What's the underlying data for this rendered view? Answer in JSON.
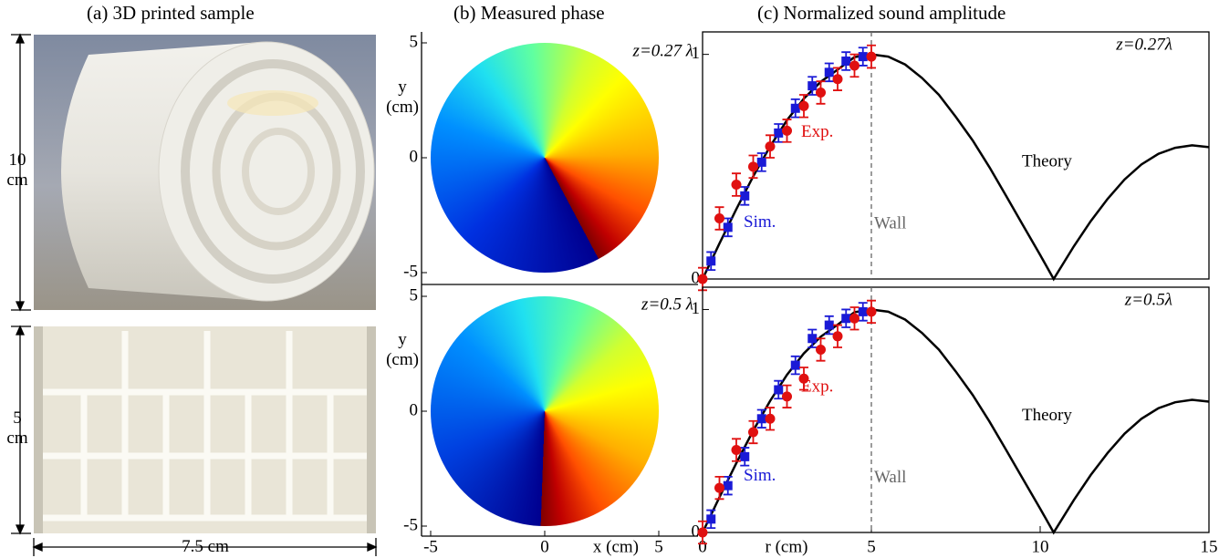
{
  "panel_a": {
    "title": "(a) 3D printed sample",
    "height_top": "10 cm",
    "height_bottom": "5 cm",
    "width": "7.5 cm"
  },
  "panel_b": {
    "title": "(b) Measured phase",
    "x_label": "x (cm)",
    "xticks": [
      -5,
      0,
      5
    ],
    "xlim": [
      -5,
      5
    ],
    "plots": [
      {
        "annotation": "z=0.27 λ",
        "y_label": "y (cm)",
        "yticks": [
          5,
          0,
          -5
        ],
        "ylim": [
          -5,
          5
        ]
      },
      {
        "annotation": "z=0.5 λ",
        "y_label": "y (cm)",
        "yticks": [
          5,
          0,
          -5
        ],
        "ylim": [
          -5,
          5
        ]
      }
    ]
  },
  "panel_c": {
    "title": "(c) Normalized sound amplitude"
  },
  "chart_data": [
    {
      "type": "line",
      "annotation": "z=0.27λ",
      "xlim": [
        0,
        15
      ],
      "ylim": [
        0,
        1.1
      ],
      "yticks": [
        0,
        1
      ],
      "wall": {
        "x": 5,
        "label": "Wall"
      },
      "series": [
        {
          "name": "Theory",
          "color": "#000000",
          "x": [
            0,
            0.5,
            1,
            1.5,
            2,
            2.5,
            3,
            3.5,
            4,
            4.5,
            5,
            5.5,
            6,
            6.5,
            7,
            7.5,
            8,
            8.5,
            9,
            9.5,
            10,
            10.4,
            11,
            11.5,
            12,
            12.5,
            13,
            13.5,
            14,
            14.5,
            15
          ],
          "values": [
            0,
            0.158,
            0.311,
            0.457,
            0.59,
            0.707,
            0.803,
            0.878,
            0.932,
            0.988,
            1,
            0.99,
            0.955,
            0.895,
            0.82,
            0.722,
            0.617,
            0.497,
            0.368,
            0.237,
            0.107,
            0,
            0.146,
            0.258,
            0.357,
            0.443,
            0.51,
            0.557,
            0.584,
            0.595,
            0.587
          ]
        },
        {
          "name": "Sim.",
          "color": "#1a1ad6",
          "x": [
            0.25,
            0.75,
            1.25,
            1.75,
            2.25,
            2.75,
            3.25,
            3.75,
            4.25,
            4.75
          ],
          "values": [
            0.08,
            0.23,
            0.37,
            0.52,
            0.65,
            0.76,
            0.86,
            0.92,
            0.97,
            0.99
          ],
          "errors": [
            0.04,
            0.04,
            0.04,
            0.04,
            0.04,
            0.04,
            0.04,
            0.04,
            0.04,
            0.04
          ]
        },
        {
          "name": "Exp.",
          "color": "#e01010",
          "x": [
            0,
            0.5,
            1,
            1.5,
            2,
            2.5,
            3,
            3.5,
            4,
            4.5,
            5
          ],
          "values": [
            0,
            0.27,
            0.42,
            0.5,
            0.59,
            0.66,
            0.77,
            0.83,
            0.89,
            0.95,
            0.99
          ],
          "errors": [
            0.05,
            0.05,
            0.05,
            0.05,
            0.05,
            0.05,
            0.05,
            0.05,
            0.05,
            0.05,
            0.05
          ]
        }
      ]
    },
    {
      "type": "line",
      "annotation": "z=0.5λ",
      "x_label": "r (cm)",
      "xlim": [
        0,
        15
      ],
      "xticks": [
        0,
        5,
        10,
        15
      ],
      "ylim": [
        0,
        1.1
      ],
      "yticks": [
        0,
        1
      ],
      "wall": {
        "x": 5,
        "label": "Wall"
      },
      "series": [
        {
          "name": "Theory",
          "color": "#000000",
          "x": [
            0,
            0.5,
            1,
            1.5,
            2,
            2.5,
            3,
            3.5,
            4,
            4.5,
            5,
            5.5,
            6,
            6.5,
            7,
            7.5,
            8,
            8.5,
            9,
            9.5,
            10,
            10.4,
            11,
            11.5,
            12,
            12.5,
            13,
            13.5,
            14,
            14.5,
            15
          ],
          "values": [
            0,
            0.158,
            0.311,
            0.457,
            0.59,
            0.707,
            0.803,
            0.878,
            0.932,
            0.988,
            1,
            0.99,
            0.955,
            0.895,
            0.82,
            0.722,
            0.617,
            0.497,
            0.368,
            0.237,
            0.107,
            0,
            0.146,
            0.258,
            0.357,
            0.443,
            0.51,
            0.557,
            0.584,
            0.595,
            0.587
          ]
        },
        {
          "name": "Sim.",
          "color": "#1a1ad6",
          "x": [
            0.25,
            0.75,
            1.25,
            1.75,
            2.25,
            2.75,
            3.25,
            3.75,
            4.25,
            4.75
          ],
          "values": [
            0.06,
            0.21,
            0.34,
            0.51,
            0.64,
            0.75,
            0.87,
            0.93,
            0.96,
            0.99
          ],
          "errors": [
            0.04,
            0.04,
            0.04,
            0.04,
            0.04,
            0.04,
            0.04,
            0.04,
            0.04,
            0.04
          ]
        },
        {
          "name": "Exp.",
          "color": "#e01010",
          "x": [
            0,
            0.5,
            1,
            1.5,
            2,
            2.5,
            3,
            3.5,
            4,
            4.5,
            5
          ],
          "values": [
            0,
            0.2,
            0.37,
            0.45,
            0.51,
            0.61,
            0.69,
            0.82,
            0.88,
            0.96,
            0.99
          ],
          "errors": [
            0.05,
            0.05,
            0.05,
            0.05,
            0.05,
            0.05,
            0.05,
            0.05,
            0.05,
            0.05,
            0.05
          ]
        }
      ]
    }
  ]
}
